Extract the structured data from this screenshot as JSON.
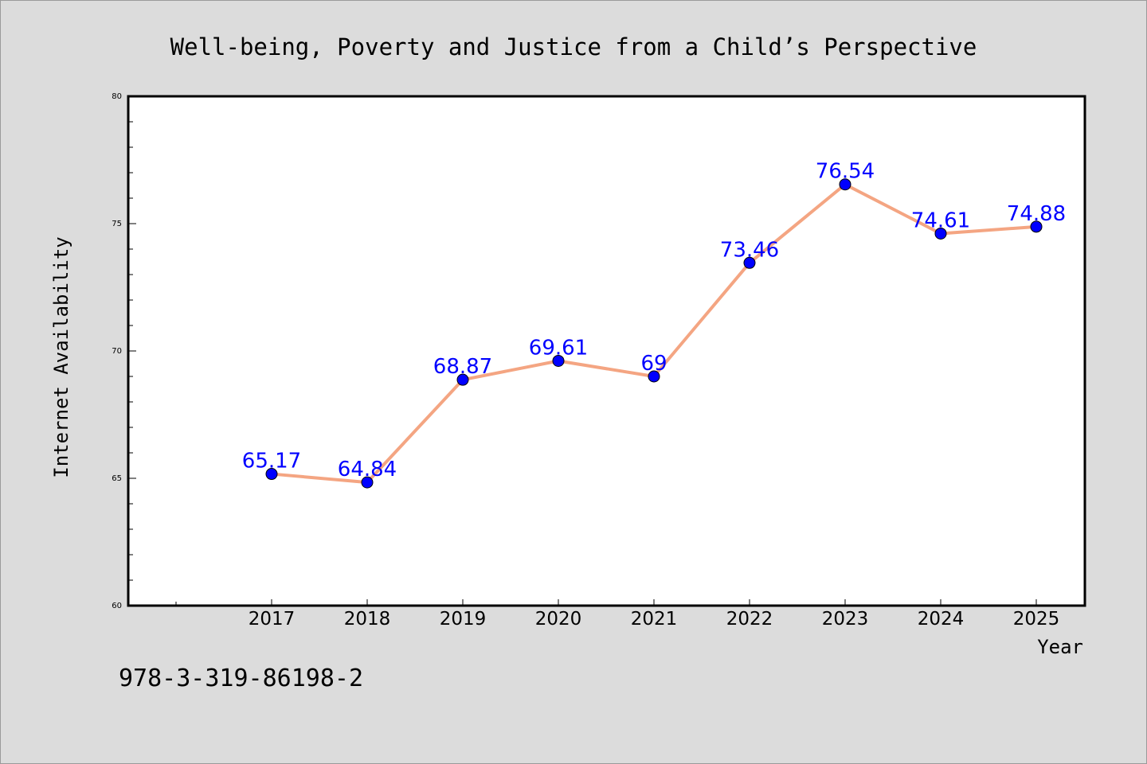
{
  "colors": {
    "background": "#dcdcdc",
    "plot_background": "#ffffff",
    "line": "#f4a582",
    "marker": "#0000ff",
    "data_label": "#0000ff",
    "frame": "#000000"
  },
  "chart_data": {
    "type": "line",
    "title": "Well-being, Poverty and Justice from a Child’s Perspective",
    "xlabel": "Year",
    "ylabel": "Internet Availability",
    "categories": [
      "2017",
      "2018",
      "2019",
      "2020",
      "2021",
      "2022",
      "2023",
      "2024",
      "2025"
    ],
    "series": [
      {
        "values": [
          65.17,
          64.84,
          68.87,
          69.61,
          69,
          73.46,
          76.54,
          74.61,
          74.88
        ],
        "labels": [
          "65.17",
          "64.84",
          "68.87",
          "69.61",
          "69",
          "73.46",
          "76.54",
          "74.61",
          "74.88"
        ]
      }
    ],
    "ylim": [
      60,
      80
    ],
    "yticks": [
      "60",
      "65",
      "70",
      "75",
      "80"
    ],
    "grid": false,
    "legend": "none"
  },
  "footer": {
    "code": "978-3-319-86198-2"
  }
}
